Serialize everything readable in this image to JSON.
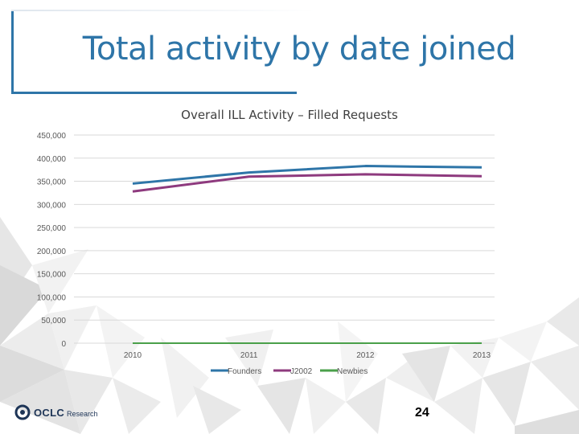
{
  "slide": {
    "title": "Total activity by date joined",
    "page_number": "24"
  },
  "logo": {
    "name": "OCLC",
    "sub": "Research",
    "icon": "oclc-logo-icon"
  },
  "colors": {
    "title": "#2e75a8",
    "founders": "#2e75a8",
    "j2002": "#8e3a7e",
    "newbies": "#4aa04a",
    "grid": "#d9d9d9",
    "axis_text": "#595959"
  },
  "chart_data": {
    "type": "line",
    "title": "Overall ILL Activity – Filled Requests",
    "categories": [
      "2010",
      "2011",
      "2012",
      "2013"
    ],
    "series": [
      {
        "name": "Founders",
        "values": [
          345000,
          369000,
          383000,
          380000
        ]
      },
      {
        "name": "J2002",
        "values": [
          328000,
          360000,
          365000,
          361000
        ]
      },
      {
        "name": "Newbies",
        "values": [
          0,
          0,
          0,
          0
        ]
      }
    ],
    "ylim": [
      0,
      450000
    ],
    "yticks": [
      0,
      50000,
      100000,
      150000,
      200000,
      250000,
      300000,
      350000,
      400000,
      450000
    ],
    "ytick_labels": [
      "0",
      "50,000",
      "100,000",
      "150,000",
      "200,000",
      "250,000",
      "300,000",
      "350,000",
      "400,000",
      "450,000"
    ],
    "xlabel": "",
    "ylabel": "",
    "grid": true,
    "legend": "bottom"
  }
}
